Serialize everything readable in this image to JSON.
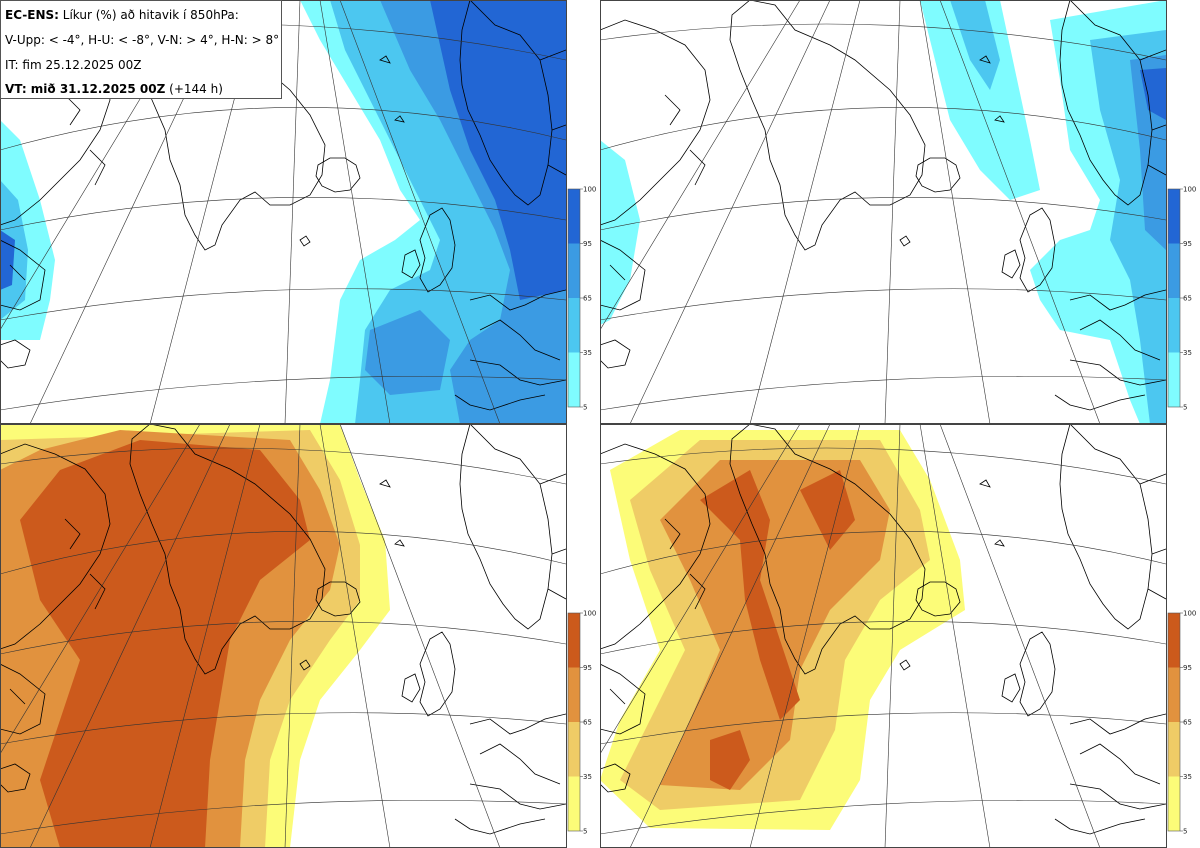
{
  "info_box": {
    "model": "EC-ENS:",
    "title_rest": "Líkur (%) að hitavik í 850hPa:",
    "legend_line": "V-Upp: < -4°, H-U: < -8°, V-N: > 4°, H-N: > 8°",
    "init_time": "IT: fim 25.12.2025 00Z",
    "valid_prefix": "VT: mið 31.12.2025 00Z",
    "valid_lead": "(+144 h)"
  },
  "colorbar_ticks": [
    "100",
    "95",
    "65",
    "35",
    "5"
  ],
  "colors": {
    "cold": [
      "#7ffcff",
      "#4cc7f0",
      "#3b9be3",
      "#2266d4"
    ],
    "warm": [
      "#fcfc78",
      "#efcc66",
      "#e1923e",
      "#cc5a1c"
    ],
    "coast": "#000000",
    "graticule": "#333333"
  },
  "panels": [
    {
      "id": "V-Upp",
      "scheme": "cold"
    },
    {
      "id": "H-U",
      "scheme": "cold"
    },
    {
      "id": "V-N",
      "scheme": "warm"
    },
    {
      "id": "H-N",
      "scheme": "warm"
    }
  ]
}
